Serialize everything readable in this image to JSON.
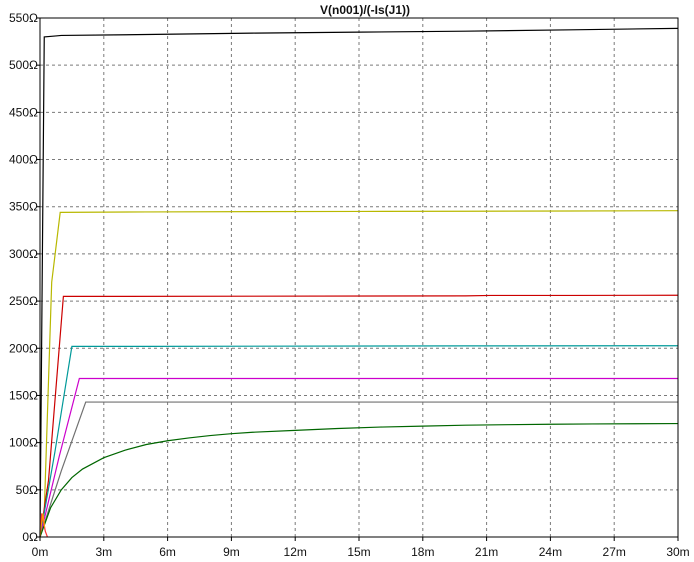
{
  "chart_data": {
    "type": "line",
    "title": "V(n001)/(-Is(J1))",
    "xlabel": "",
    "ylabel": "",
    "xlim": [
      0,
      30
    ],
    "ylim": [
      0,
      5500
    ],
    "x_ticks": [
      0,
      3,
      6,
      9,
      12,
      15,
      18,
      21,
      24,
      27,
      30
    ],
    "x_tick_labels": [
      "0m",
      "3m",
      "6m",
      "9m",
      "12m",
      "15m",
      "18m",
      "21m",
      "24m",
      "27m",
      "30m"
    ],
    "y_ticks": [
      0,
      500,
      1000,
      1500,
      2000,
      2500,
      3000,
      3500,
      4000,
      4500,
      5000,
      5500
    ],
    "y_tick_labels": [
      "0Ω",
      "50Ω",
      "100Ω",
      "150Ω",
      "200Ω",
      "250Ω",
      "300Ω",
      "350Ω",
      "400Ω",
      "450Ω",
      "500Ω",
      "550Ω"
    ],
    "grid": true,
    "series": [
      {
        "color": "#000000",
        "x": [
          0,
          0.2,
          0.75,
          1.0,
          5,
          10,
          15,
          20,
          25,
          30
        ],
        "y": [
          0,
          5300,
          5310,
          5315,
          5325,
          5340,
          5350,
          5360,
          5375,
          5390
        ]
      },
      {
        "color": "#b8b800",
        "x": [
          0,
          0.2,
          0.55,
          0.95,
          5,
          10,
          15,
          20,
          25,
          30
        ],
        "y": [
          0,
          260,
          2700,
          3440,
          3445,
          3448,
          3450,
          3452,
          3455,
          3458
        ]
      },
      {
        "color": "#cc0000",
        "x": [
          0,
          0.4,
          1.1,
          3,
          10,
          20,
          21.2,
          25,
          30
        ],
        "y": [
          0,
          600,
          2550,
          2550,
          2552,
          2555,
          2560,
          2560,
          2562
        ]
      },
      {
        "color": "#009999",
        "x": [
          0,
          0.7,
          1.5,
          5,
          10,
          20,
          30
        ],
        "y": [
          0,
          900,
          2020,
          2020,
          2022,
          2025,
          2027
        ]
      },
      {
        "color": "#cc00cc",
        "x": [
          0,
          0.9,
          1.85,
          5,
          10,
          20,
          30
        ],
        "y": [
          0,
          850,
          1680,
          1680,
          1680,
          1680,
          1680
        ]
      },
      {
        "color": "#707070",
        "x": [
          0,
          1.0,
          2.15,
          5,
          10,
          20,
          30
        ],
        "y": [
          0,
          700,
          1430,
          1430,
          1430,
          1430,
          1430
        ]
      },
      {
        "color": "#006600",
        "x": [
          0,
          0.5,
          1,
          1.5,
          2,
          3,
          4,
          5,
          6,
          7,
          8,
          9,
          10,
          12,
          14,
          16,
          18,
          20,
          22,
          24,
          26,
          28,
          30
        ],
        "y": [
          0,
          310,
          500,
          630,
          720,
          840,
          920,
          980,
          1020,
          1050,
          1075,
          1095,
          1110,
          1130,
          1150,
          1165,
          1175,
          1185,
          1190,
          1195,
          1198,
          1200,
          1202
        ]
      },
      {
        "color": "#ff3333",
        "x": [
          0,
          0.08,
          0.15,
          0.25,
          0.35
        ],
        "y": [
          0,
          250,
          180,
          60,
          0
        ]
      },
      {
        "color": "#ff9900",
        "x": [
          0,
          0.06,
          0.14,
          0.22
        ],
        "y": [
          0,
          120,
          250,
          100
        ]
      }
    ]
  }
}
